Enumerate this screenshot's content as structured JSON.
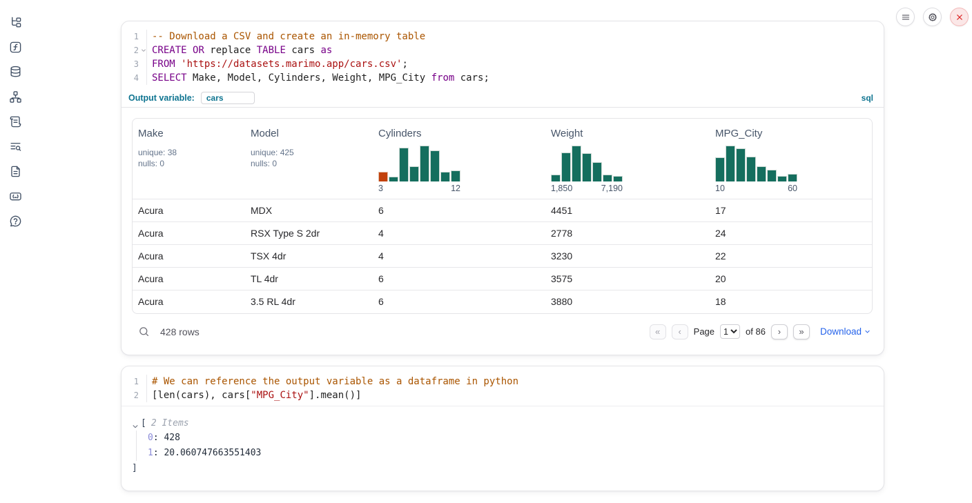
{
  "colors": {
    "accent_blue": "#0e7490",
    "link_blue": "#2563eb",
    "hist_teal": "#156e5e",
    "hist_orange": "#c2410c",
    "syntax_keyword": "#770088",
    "syntax_comment": "#aa5500",
    "syntax_string": "#aa1111",
    "shutdown_red": "#dc2626"
  },
  "sidebar": {
    "icons": [
      "file-tree",
      "function-square",
      "database",
      "dependency-graph",
      "scroll",
      "list-search",
      "document",
      "code-snippets",
      "help-circle"
    ]
  },
  "topbar": {
    "icons": [
      "menu",
      "settings-gear",
      "shutdown-x"
    ]
  },
  "sql_cell": {
    "lines": [
      {
        "n": "1",
        "tokens": [
          {
            "c": "cm",
            "t": "-- Download a CSV and create an in-memory table"
          }
        ]
      },
      {
        "n": "2",
        "fold": true,
        "tokens": [
          {
            "c": "kw",
            "t": "CREATE"
          },
          {
            "c": "pl",
            "t": " "
          },
          {
            "c": "kw",
            "t": "OR"
          },
          {
            "c": "pl",
            "t": " replace "
          },
          {
            "c": "kw",
            "t": "TABLE"
          },
          {
            "c": "pl",
            "t": " cars "
          },
          {
            "c": "kw",
            "t": "as"
          }
        ]
      },
      {
        "n": "3",
        "tokens": [
          {
            "c": "kw",
            "t": "FROM"
          },
          {
            "c": "pl",
            "t": " "
          },
          {
            "c": "str",
            "t": "'https://datasets.marimo.app/cars.csv'"
          },
          {
            "c": "pl",
            "t": ";"
          }
        ]
      },
      {
        "n": "4",
        "tokens": [
          {
            "c": "kw",
            "t": "SELECT"
          },
          {
            "c": "pl",
            "t": " Make, Model, Cylinders, Weight, MPG_City "
          },
          {
            "c": "kw",
            "t": "from"
          },
          {
            "c": "pl",
            "t": " cars;"
          }
        ]
      }
    ],
    "output_variable_label": "Output variable:",
    "output_variable_value": "cars",
    "language_badge": "sql"
  },
  "table": {
    "columns": [
      {
        "name": "Make",
        "stats": [
          "unique: 38",
          "nulls: 0"
        ]
      },
      {
        "name": "Model",
        "stats": [
          "unique: 425",
          "nulls: 0"
        ]
      },
      {
        "name": "Cylinders",
        "hist": {
          "labels": [
            "3",
            "12"
          ],
          "bars": [
            {
              "h": 26,
              "c": "orange"
            },
            {
              "h": 14
            },
            {
              "h": 95
            },
            {
              "h": 43
            },
            {
              "h": 100
            },
            {
              "h": 86
            },
            {
              "h": 26
            },
            {
              "h": 30
            }
          ]
        }
      },
      {
        "name": "Weight",
        "hist": {
          "labels": [
            "1,850",
            "7,190"
          ],
          "bars": [
            {
              "h": 19
            },
            {
              "h": 80
            },
            {
              "h": 100
            },
            {
              "h": 78
            },
            {
              "h": 54
            },
            {
              "h": 20
            },
            {
              "h": 15
            }
          ]
        }
      },
      {
        "name": "MPG_City",
        "hist": {
          "labels": [
            "10",
            "60"
          ],
          "bars": [
            {
              "h": 67
            },
            {
              "h": 100
            },
            {
              "h": 93
            },
            {
              "h": 70
            },
            {
              "h": 43
            },
            {
              "h": 32
            },
            {
              "h": 15
            },
            {
              "h": 22
            }
          ]
        }
      }
    ],
    "rows": [
      [
        "Acura",
        "MDX",
        "6",
        "4451",
        "17"
      ],
      [
        "Acura",
        "RSX Type S 2dr",
        "4",
        "2778",
        "24"
      ],
      [
        "Acura",
        "TSX 4dr",
        "4",
        "3230",
        "22"
      ],
      [
        "Acura",
        "TL 4dr",
        "6",
        "3575",
        "20"
      ],
      [
        "Acura",
        "3.5 RL 4dr",
        "6",
        "3880",
        "18"
      ]
    ],
    "footer": {
      "row_count": "428 rows",
      "first_glyph": "«",
      "prev_glyph": "‹",
      "next_glyph": "›",
      "last_glyph": "»",
      "page_label": "Page",
      "page_value": "1",
      "of_label": "of 86",
      "download_label": "Download"
    }
  },
  "py_cell": {
    "lines": [
      {
        "n": "1",
        "tokens": [
          {
            "c": "cm",
            "t": "# We can reference the output variable as a dataframe in python"
          }
        ]
      },
      {
        "n": "2",
        "tokens": [
          {
            "c": "pl",
            "t": "[len(cars), cars["
          },
          {
            "c": "str",
            "t": "\"MPG_City\""
          },
          {
            "c": "pl",
            "t": "].mean()]"
          }
        ]
      }
    ]
  },
  "py_output": {
    "bracket_open": "[",
    "items_label": "2 Items",
    "entries": [
      {
        "key": "0",
        "value": "428"
      },
      {
        "key": "1",
        "value": "20.060747663551403"
      }
    ],
    "bracket_close": "]"
  }
}
